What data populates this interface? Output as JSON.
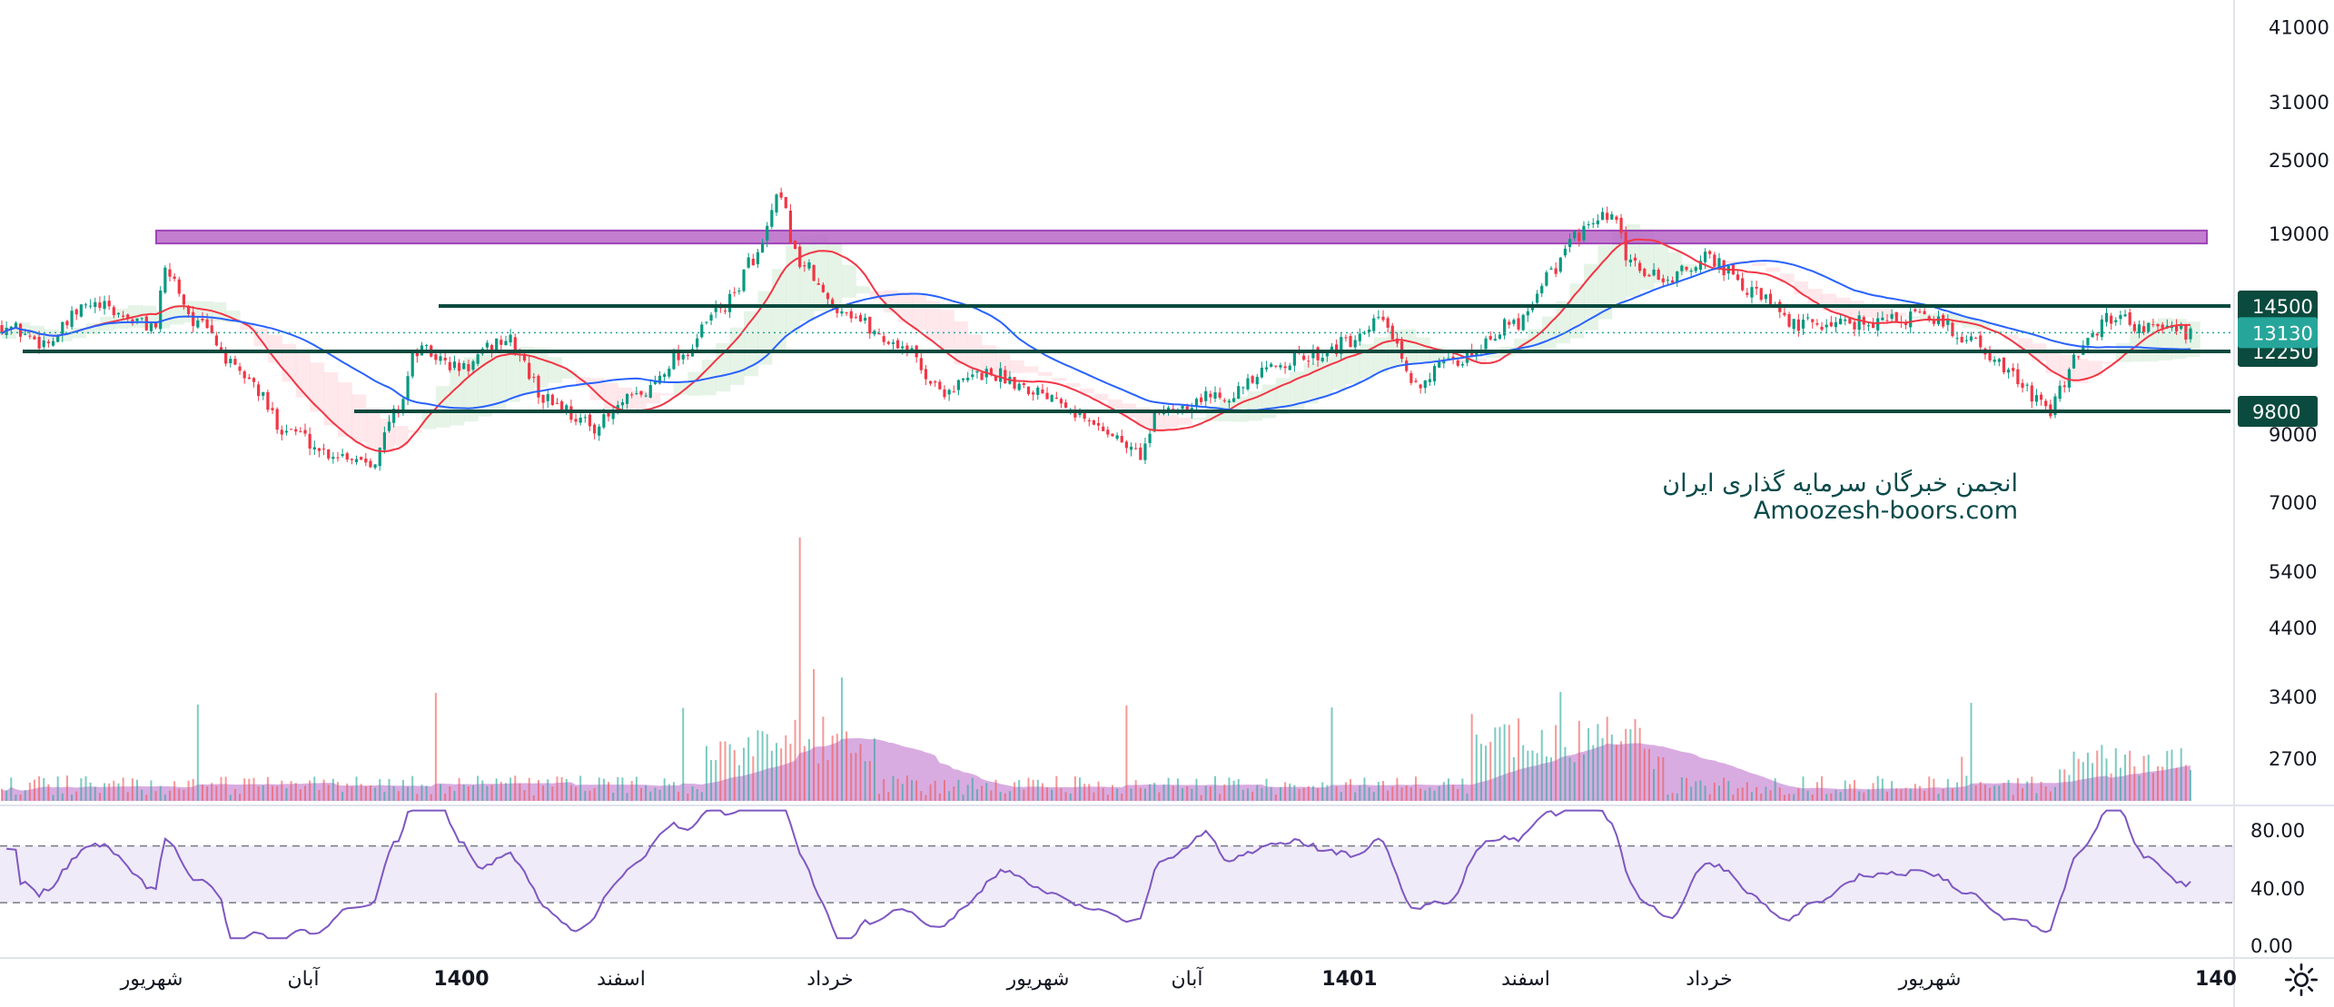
{
  "chart_data": {
    "type": "candlestick",
    "y_scale": "log",
    "price_axis_ticks": [
      "41000",
      "31000",
      "25000",
      "19000",
      "9000",
      "7000",
      "5400",
      "4400",
      "3400",
      "2700"
    ],
    "rsi_axis_ticks": [
      "80.00",
      "40.00",
      "0.00"
    ],
    "time_axis_labels": [
      {
        "text": "شهریور",
        "bold": false
      },
      {
        "text": "آبان",
        "bold": false
      },
      {
        "text": "1400",
        "bold": true
      },
      {
        "text": "اسفند",
        "bold": false
      },
      {
        "text": "خرداد",
        "bold": false
      },
      {
        "text": "شهریور",
        "bold": false
      },
      {
        "text": "آبان",
        "bold": false
      },
      {
        "text": "1401",
        "bold": true
      },
      {
        "text": "اسفند",
        "bold": false
      },
      {
        "text": "خرداد",
        "bold": false
      },
      {
        "text": "شهریور",
        "bold": false
      },
      {
        "text": "140",
        "bold": true
      }
    ],
    "last_price": {
      "value": 13130,
      "label": "13130",
      "color": "#26a69a"
    },
    "support_resistance": [
      {
        "value": 14500,
        "label": "14500"
      },
      {
        "value": 12250,
        "label": "12250"
      },
      {
        "value": 9800,
        "label": "9800"
      }
    ],
    "resistance_zone": {
      "low": 18300,
      "high": 19200
    },
    "price_anchors": [
      [
        0,
        13500
      ],
      [
        0.02,
        12700
      ],
      [
        0.04,
        14500
      ],
      [
        0.07,
        13500
      ],
      [
        0.075,
        16500
      ],
      [
        0.09,
        13500
      ],
      [
        0.11,
        11200
      ],
      [
        0.13,
        9200
      ],
      [
        0.15,
        8400
      ],
      [
        0.17,
        8200
      ],
      [
        0.18,
        9800
      ],
      [
        0.19,
        12300
      ],
      [
        0.21,
        11500
      ],
      [
        0.23,
        12800
      ],
      [
        0.25,
        10200
      ],
      [
        0.27,
        9300
      ],
      [
        0.29,
        10300
      ],
      [
        0.31,
        12100
      ],
      [
        0.33,
        14500
      ],
      [
        0.345,
        17500
      ],
      [
        0.355,
        21500
      ],
      [
        0.365,
        17000
      ],
      [
        0.38,
        14500
      ],
      [
        0.41,
        12600
      ],
      [
        0.43,
        10600
      ],
      [
        0.45,
        11300
      ],
      [
        0.48,
        10500
      ],
      [
        0.5,
        9300
      ],
      [
        0.52,
        8400
      ],
      [
        0.53,
        9900
      ],
      [
        0.56,
        10500
      ],
      [
        0.59,
        11900
      ],
      [
        0.62,
        12700
      ],
      [
        0.63,
        13800
      ],
      [
        0.645,
        10900
      ],
      [
        0.66,
        11600
      ],
      [
        0.69,
        13500
      ],
      [
        0.71,
        16800
      ],
      [
        0.72,
        19000
      ],
      [
        0.735,
        20200
      ],
      [
        0.745,
        16800
      ],
      [
        0.76,
        16000
      ],
      [
        0.78,
        17300
      ],
      [
        0.8,
        15200
      ],
      [
        0.82,
        13500
      ],
      [
        0.85,
        13700
      ],
      [
        0.88,
        13900
      ],
      [
        0.9,
        12800
      ],
      [
        0.92,
        11100
      ],
      [
        0.935,
        9800
      ],
      [
        0.95,
        12400
      ],
      [
        0.965,
        14000
      ],
      [
        0.98,
        13400
      ],
      [
        1,
        13130
      ]
    ],
    "moving_averages": [
      {
        "name": "fast",
        "color": "#f23645"
      },
      {
        "name": "slow",
        "color": "#2962ff"
      }
    ],
    "rsi": {
      "upper": 70,
      "lower": 30,
      "color": "#7e57c2"
    },
    "colors": {
      "up": "#089981",
      "down": "#f23645",
      "zone": "#ba68c8",
      "level": "#0b4a3e",
      "volume_ma": "#ba68c8"
    }
  },
  "watermark": {
    "line1": "انجمن خبرگان سرمایه گذاری ایران",
    "line2": "Amoozesh-boors.com"
  },
  "settings_icon": "gear-icon"
}
